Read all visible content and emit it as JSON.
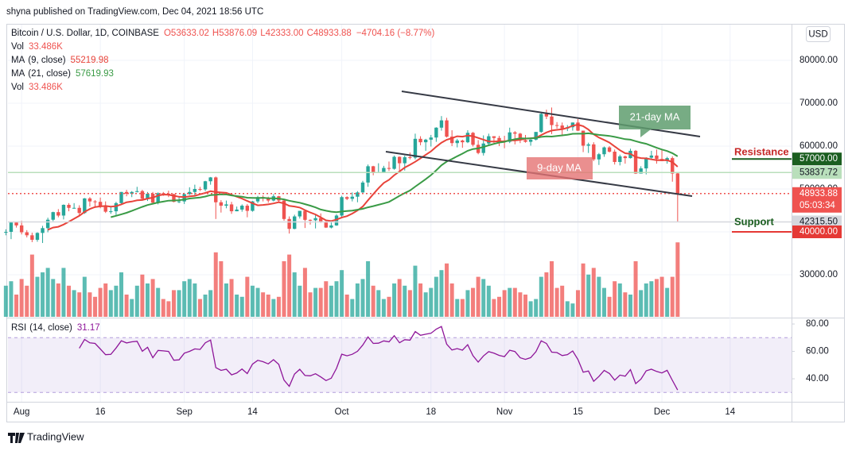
{
  "header": "shyna published on TradingView.com, Dec 04, 2021 18:56 UTC",
  "footer": "TradingView",
  "chart_data": {
    "type": "candlestick",
    "currency": "USD",
    "symbol": "Bitcoin / U.S. Dollar, 1D, COINBASE",
    "legend_ohlc": [
      "O53633.02",
      "H53876.09",
      "L42333.00",
      "C48933.88",
      "−4704.16 (−8.77%)"
    ],
    "volume_name": "Vol",
    "volume_value_label": "33.486K",
    "up_color": "#26a69a",
    "down_color": "#ef5350",
    "xlim": [
      0.4,
      149.7
    ],
    "xticks": [
      {
        "value": 3,
        "label": "Aug"
      },
      {
        "value": 18,
        "label": "16"
      },
      {
        "value": 34,
        "label": "Sep"
      },
      {
        "value": 47,
        "label": "14"
      },
      {
        "value": 64,
        "label": "Oct"
      },
      {
        "value": 81,
        "label": "18"
      },
      {
        "value": 95,
        "label": "Nov"
      },
      {
        "value": 109,
        "label": "15"
      },
      {
        "value": 125,
        "label": "Dec"
      },
      {
        "value": 138,
        "label": "14"
      }
    ],
    "ylim": [
      20185,
      88519
    ],
    "yticks": [
      {
        "value": 30000,
        "label": "30000.00"
      },
      {
        "value": 40000,
        "label": "40000.00"
      },
      {
        "value": 50000,
        "label": "50000.00"
      },
      {
        "value": 60000,
        "label": "60000.00"
      },
      {
        "value": 70000,
        "label": "70000.00"
      },
      {
        "value": 80000,
        "label": "80000.00"
      }
    ],
    "grid": true,
    "moving_averages": [
      {
        "name": "MA",
        "params": "(9, close)",
        "period": 9,
        "value": 55219.98,
        "color": "#e8433a"
      },
      {
        "name": "MA",
        "params": "(21, close)",
        "period": 21,
        "value": 57619.93,
        "color": "#3a9b46"
      }
    ],
    "annotations": [
      "21-day MA",
      "9-day MA",
      "Resistance",
      "Support"
    ],
    "price_levels": [
      {
        "value": 57000,
        "label": "57000.00",
        "color": "#1b5e20",
        "text_color": "#ffffff",
        "extent": "short"
      },
      {
        "value": 53837.72,
        "label": "53837.72",
        "color": "#b9dfbb",
        "text_color": "#131722",
        "extent": "full"
      },
      {
        "value": 48933.88,
        "label": "48933.88",
        "countdown": "05:03:34",
        "color": "#ef5350",
        "text_color": "#ffffff",
        "extent": "full"
      },
      {
        "value": 42315.5,
        "label": "42315.50",
        "color": "#d6d8de",
        "text_color": "#131722",
        "extent": "full"
      },
      {
        "value": 40000,
        "label": "40000.00",
        "color": "#e53935",
        "text_color": "#ffffff",
        "extent": "short"
      }
    ],
    "ohlc": [
      [
        40000,
        40600,
        39200,
        40000
      ],
      [
        40000,
        42300,
        38300,
        42200
      ],
      [
        42200,
        42400,
        41000,
        41500
      ],
      [
        41500,
        42600,
        39400,
        39900
      ],
      [
        39900,
        40400,
        38700,
        39200
      ],
      [
        39200,
        39800,
        37600,
        38150
      ],
      [
        38150,
        39900,
        37700,
        39750
      ],
      [
        39750,
        41400,
        37400,
        40870
      ],
      [
        40870,
        43300,
        39900,
        42830
      ],
      [
        42830,
        44700,
        42500,
        44600
      ],
      [
        44600,
        45300,
        43400,
        43800
      ],
      [
        43800,
        46400,
        42900,
        46300
      ],
      [
        46300,
        46700,
        44800,
        45600
      ],
      [
        45600,
        46700,
        45400,
        45600
      ],
      [
        45600,
        46200,
        43800,
        44400
      ],
      [
        44400,
        47900,
        44200,
        47800
      ],
      [
        47800,
        48100,
        45900,
        47100
      ],
      [
        47100,
        47400,
        45600,
        47000
      ],
      [
        47000,
        48000,
        45500,
        45900
      ],
      [
        45900,
        47100,
        44400,
        44700
      ],
      [
        44700,
        46000,
        44200,
        44800
      ],
      [
        44800,
        47000,
        43900,
        46700
      ],
      [
        46700,
        49300,
        46600,
        49300
      ],
      [
        49300,
        49800,
        48300,
        48900
      ],
      [
        48900,
        49500,
        48100,
        49300
      ],
      [
        49300,
        50500,
        49200,
        49500
      ],
      [
        49500,
        49800,
        47600,
        47700
      ],
      [
        47700,
        49300,
        47200,
        48900
      ],
      [
        48900,
        49300,
        46400,
        46800
      ],
      [
        46800,
        49200,
        46400,
        49000
      ],
      [
        49000,
        49300,
        48400,
        48900
      ],
      [
        48900,
        49600,
        48100,
        48800
      ],
      [
        48800,
        48900,
        46900,
        47000
      ],
      [
        47000,
        48200,
        46700,
        47100
      ],
      [
        47100,
        49100,
        46500,
        48800
      ],
      [
        48800,
        50400,
        48600,
        49300
      ],
      [
        49300,
        51000,
        48400,
        50000
      ],
      [
        50000,
        50500,
        49500,
        49900
      ],
      [
        49900,
        51900,
        49500,
        51800
      ],
      [
        51800,
        52800,
        51000,
        52700
      ],
      [
        52700,
        52900,
        43000,
        46900
      ],
      [
        46900,
        47400,
        44500,
        46100
      ],
      [
        46100,
        47300,
        45500,
        46400
      ],
      [
        46400,
        47000,
        44200,
        44800
      ],
      [
        44800,
        45900,
        44800,
        45200
      ],
      [
        45200,
        46400,
        44700,
        46100
      ],
      [
        46100,
        46500,
        43400,
        44900
      ],
      [
        44900,
        47200,
        44700,
        47100
      ],
      [
        47100,
        48400,
        46700,
        48100
      ],
      [
        48100,
        48500,
        47100,
        47800
      ],
      [
        47800,
        48200,
        46800,
        47300
      ],
      [
        47300,
        48800,
        47100,
        48300
      ],
      [
        48300,
        48400,
        46900,
        47300
      ],
      [
        47300,
        47400,
        42600,
        43000
      ],
      [
        43000,
        43600,
        39600,
        40700
      ],
      [
        40700,
        44000,
        40600,
        43600
      ],
      [
        43600,
        44900,
        43100,
        44900
      ],
      [
        44900,
        45100,
        40900,
        42800
      ],
      [
        42800,
        42900,
        41700,
        42700
      ],
      [
        42700,
        43900,
        40800,
        43200
      ],
      [
        43200,
        44300,
        42100,
        42200
      ],
      [
        42200,
        42800,
        40900,
        41000
      ],
      [
        41000,
        42600,
        40800,
        41500
      ],
      [
        41500,
        44100,
        41400,
        43800
      ],
      [
        43800,
        48400,
        43300,
        48100
      ],
      [
        48100,
        48300,
        47400,
        47700
      ],
      [
        47700,
        49200,
        47100,
        48200
      ],
      [
        48200,
        49500,
        46900,
        49200
      ],
      [
        49200,
        51900,
        49100,
        51500
      ],
      [
        51500,
        55700,
        50500,
        55300
      ],
      [
        55300,
        55400,
        53200,
        53800
      ],
      [
        53800,
        56000,
        53700,
        53900
      ],
      [
        53900,
        55400,
        53700,
        54900
      ],
      [
        54900,
        56400,
        54200,
        54700
      ],
      [
        54700,
        57800,
        54500,
        57500
      ],
      [
        57500,
        57600,
        54000,
        56000
      ],
      [
        56000,
        57800,
        54300,
        57400
      ],
      [
        57400,
        58500,
        56900,
        57300
      ],
      [
        57300,
        62900,
        56900,
        61700
      ],
      [
        61700,
        62300,
        60200,
        60900
      ],
      [
        60900,
        61700,
        58900,
        61500
      ],
      [
        61500,
        62600,
        59900,
        62000
      ],
      [
        62000,
        64400,
        61000,
        64300
      ],
      [
        64300,
        67000,
        63600,
        66000
      ],
      [
        66000,
        66600,
        62000,
        62200
      ],
      [
        62200,
        63700,
        60000,
        60700
      ],
      [
        60700,
        61700,
        59700,
        61300
      ],
      [
        61300,
        61500,
        59600,
        60900
      ],
      [
        60900,
        63700,
        60700,
        63100
      ],
      [
        63100,
        63300,
        59900,
        60300
      ],
      [
        60300,
        61400,
        58100,
        58400
      ],
      [
        58400,
        62500,
        57800,
        60600
      ],
      [
        60600,
        62900,
        60200,
        62300
      ],
      [
        62300,
        62300,
        60700,
        61900
      ],
      [
        61900,
        62400,
        60000,
        61300
      ],
      [
        61300,
        62400,
        59500,
        61000
      ],
      [
        61000,
        64300,
        60700,
        63200
      ],
      [
        63200,
        63500,
        60400,
        62900
      ],
      [
        62900,
        63100,
        60700,
        61400
      ],
      [
        61400,
        62600,
        60800,
        61000
      ],
      [
        61000,
        61600,
        60100,
        61500
      ],
      [
        61500,
        63300,
        61300,
        63300
      ],
      [
        63300,
        67800,
        63100,
        67500
      ],
      [
        67500,
        68500,
        66300,
        66900
      ],
      [
        66900,
        69000,
        62800,
        64900
      ],
      [
        64900,
        65600,
        64100,
        64800
      ],
      [
        64800,
        65500,
        62300,
        64100
      ],
      [
        64100,
        64900,
        63500,
        64400
      ],
      [
        64400,
        65500,
        63600,
        65500
      ],
      [
        65500,
        66300,
        63500,
        63600
      ],
      [
        63600,
        63600,
        58600,
        60100
      ],
      [
        60100,
        60800,
        58400,
        60400
      ],
      [
        60400,
        60900,
        56500,
        56900
      ],
      [
        56900,
        58400,
        55600,
        58100
      ],
      [
        58100,
        59900,
        57500,
        59700
      ],
      [
        59700,
        60000,
        58500,
        58700
      ],
      [
        58700,
        59200,
        55700,
        56300
      ],
      [
        56300,
        58000,
        55500,
        57600
      ],
      [
        57600,
        57800,
        55900,
        57200
      ],
      [
        57200,
        59400,
        57100,
        58900
      ],
      [
        58900,
        59100,
        53500,
        53600
      ],
      [
        53600,
        55300,
        53600,
        54800
      ],
      [
        54800,
        57400,
        53400,
        57300
      ],
      [
        57300,
        58900,
        56800,
        57800
      ],
      [
        57800,
        59200,
        55900,
        57000
      ],
      [
        57000,
        59100,
        56500,
        56500
      ],
      [
        56500,
        57500,
        55900,
        57200
      ],
      [
        57200,
        57600,
        51700,
        53600
      ],
      [
        53633.02,
        53876.09,
        42333,
        48933.88
      ]
    ],
    "volume": [
      14,
      16,
      10,
      17,
      14,
      28,
      18,
      20,
      22,
      17,
      15,
      22,
      14,
      12,
      11,
      18,
      11,
      9,
      13,
      15,
      12,
      14,
      20,
      10,
      8,
      14,
      19,
      15,
      17,
      13,
      8,
      7,
      12,
      12,
      16,
      17,
      15,
      8,
      10,
      12,
      29,
      25,
      15,
      17,
      10,
      9,
      18,
      14,
      13,
      11,
      10,
      8,
      9,
      25,
      28,
      20,
      14,
      22,
      11,
      13,
      13,
      16,
      14,
      16,
      21,
      10,
      8,
      15,
      17,
      25,
      14,
      12,
      8,
      9,
      15,
      17,
      14,
      12,
      23,
      15,
      11,
      13,
      18,
      21,
      24,
      15,
      8,
      8,
      12,
      13,
      18,
      17,
      14,
      8,
      9,
      12,
      13,
      13,
      11,
      10,
      7,
      8,
      18,
      20,
      25,
      13,
      14,
      7,
      6,
      12,
      24,
      19,
      22,
      18,
      13,
      9,
      16,
      15,
      11,
      10,
      25,
      12,
      15,
      16,
      17,
      18,
      13,
      18,
      33.486
    ],
    "rsi": {
      "name": "RSI",
      "params": "(14, close)",
      "period": 14,
      "value": 31.17,
      "color": "#8e1599",
      "band": [
        30,
        70
      ],
      "ylim": [
        23.8,
        83.5
      ],
      "yticks": [
        {
          "value": 40,
          "label": "40.00"
        },
        {
          "value": 60,
          "label": "60.00"
        },
        {
          "value": 80,
          "label": "80.00"
        }
      ]
    }
  }
}
